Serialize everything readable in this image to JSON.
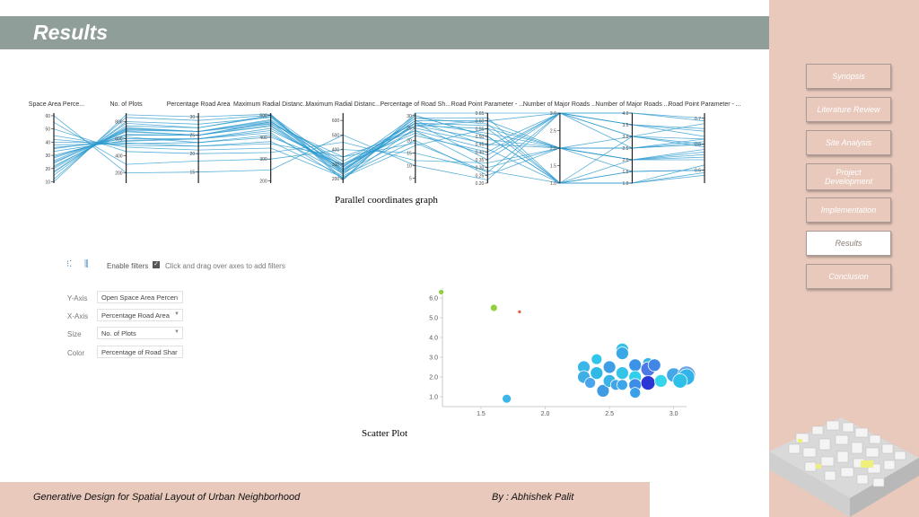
{
  "header": {
    "title": "Results"
  },
  "nav": {
    "items": [
      {
        "label": "Synopsis"
      },
      {
        "label": "Literature Review"
      },
      {
        "label": "Site Analysis"
      },
      {
        "label": "Project Development"
      },
      {
        "label": "Implementation"
      },
      {
        "label": "Results",
        "active": true
      },
      {
        "label": "Conclusion"
      }
    ]
  },
  "captions": {
    "parallel": "Parallel coordinates graph",
    "scatter": "Scatter Plot"
  },
  "footer": {
    "left": "Generative Design for Spatial Layout of Urban Neighborhood",
    "right": "By : Abhishek Palit"
  },
  "toolbar": {
    "enable_filters": "Enable filters",
    "checkbox_mark": "✓",
    "hint": "Click and drag over axes to add filters"
  },
  "controls": [
    {
      "label": "Y-Axis",
      "value": "Open Space Area Percen",
      "dropdown": false
    },
    {
      "label": "X-Axis",
      "value": "Percentage Road Area",
      "dropdown": true
    },
    {
      "label": "Size",
      "value": "No. of Plots",
      "dropdown": true
    },
    {
      "label": "Color",
      "value": "Percentage of Road Shar",
      "dropdown": false
    }
  ],
  "colors": {
    "line": "#2e9bd0",
    "accent_bar": "#8f9e99",
    "panel": "#e8c9bc"
  },
  "chart_data": [
    {
      "type": "parallel-coordinates",
      "axes": [
        {
          "label": "n Space Area Perce...",
          "ticks": [
            "60",
            "50",
            "40",
            "30",
            "20",
            "10"
          ],
          "range": [
            9,
            62
          ]
        },
        {
          "label": "No. of Plots",
          "ticks": [
            "800",
            "600",
            "400",
            "200"
          ],
          "range": [
            80,
            900
          ]
        },
        {
          "label": "Percentage Road Area",
          "ticks": [
            "30",
            "25",
            "20",
            "15"
          ],
          "range": [
            12,
            31
          ]
        },
        {
          "label": "Maximum Radial Distanc...",
          "ticks": [
            "500",
            "400",
            "300",
            "200"
          ],
          "range": [
            190,
            510
          ]
        },
        {
          "label": "Maximum Radial Distanc...",
          "ticks": [
            "600",
            "500",
            "400",
            "300",
            "200"
          ],
          "range": [
            170,
            650
          ]
        },
        {
          "label": "Percentage of Road Sh...",
          "ticks": [
            "30",
            "25",
            "20",
            "15",
            "10",
            "5"
          ],
          "range": [
            3,
            31
          ]
        },
        {
          "label": "Road Point Parameter - ...",
          "ticks": [
            "0.65",
            "0.60",
            "0.55",
            "0.50",
            "0.45",
            "0.40",
            "0.35",
            "0.30",
            "0.25",
            "0.20"
          ],
          "range": [
            0.2,
            0.65
          ]
        },
        {
          "label": "Number of Major Roads ...",
          "ticks": [
            "3.0",
            "2.5",
            "2.0",
            "1.5",
            "1.0"
          ],
          "range": [
            1,
            3
          ]
        },
        {
          "label": "Number of Major Roads ...",
          "ticks": [
            "4.0",
            "3.5",
            "3.0",
            "2.5",
            "2.0",
            "1.5",
            "1.0"
          ],
          "range": [
            1,
            4
          ]
        },
        {
          "label": "Road Point Parameter - ...",
          "ticks": [
            "0.7",
            "0.6",
            "0.5"
          ],
          "range": [
            0.45,
            0.72
          ]
        }
      ],
      "rows": [
        [
          22,
          700,
          26,
          480,
          300,
          26,
          0.55,
          2,
          2.5,
          0.6
        ],
        [
          28,
          650,
          25,
          450,
          250,
          28,
          0.6,
          3,
          3,
          0.62
        ],
        [
          35,
          600,
          24,
          420,
          200,
          25,
          0.45,
          2,
          2,
          0.55
        ],
        [
          18,
          750,
          27,
          500,
          280,
          30,
          0.5,
          1,
          1.5,
          0.5
        ],
        [
          25,
          680,
          25,
          470,
          320,
          27,
          0.35,
          3,
          3.5,
          0.65
        ],
        [
          40,
          550,
          22,
          380,
          220,
          20,
          0.25,
          2,
          2,
          0.58
        ],
        [
          15,
          800,
          28,
          490,
          260,
          29,
          0.62,
          1,
          1,
          0.52
        ],
        [
          30,
          620,
          23,
          410,
          240,
          22,
          0.4,
          3,
          2.5,
          0.6
        ],
        [
          20,
          720,
          26,
          460,
          350,
          24,
          0.3,
          2,
          3,
          0.68
        ],
        [
          45,
          500,
          21,
          350,
          210,
          18,
          0.55,
          1,
          1.5,
          0.5
        ],
        [
          12,
          850,
          29,
          500,
          190,
          31,
          0.65,
          3,
          4,
          0.7
        ],
        [
          33,
          580,
          24,
          440,
          270,
          26,
          0.48,
          2,
          2,
          0.56
        ],
        [
          55,
          300,
          18,
          300,
          400,
          15,
          0.28,
          1,
          1,
          0.48
        ],
        [
          60,
          200,
          15,
          250,
          500,
          10,
          0.22,
          3,
          3.5,
          0.66
        ],
        [
          26,
          690,
          25,
          465,
          230,
          27,
          0.52,
          2,
          2.5,
          0.62
        ],
        [
          38,
          540,
          23,
          400,
          300,
          23,
          0.38,
          3,
          3,
          0.59
        ],
        [
          17,
          780,
          27,
          495,
          250,
          29,
          0.58,
          1,
          2,
          0.54
        ],
        [
          50,
          450,
          20,
          330,
          450,
          12,
          0.33,
          2,
          1.5,
          0.5
        ],
        [
          24,
          710,
          26,
          470,
          280,
          28,
          0.44,
          3,
          3.5,
          0.63
        ],
        [
          29,
          640,
          25,
          455,
          260,
          26,
          0.6,
          2,
          2.5,
          0.61
        ],
        [
          10,
          880,
          30,
          505,
          200,
          30,
          0.5,
          1,
          1,
          0.49
        ],
        [
          42,
          520,
          22,
          370,
          350,
          19,
          0.27,
          3,
          4,
          0.69
        ],
        [
          21,
          730,
          26,
          475,
          240,
          27,
          0.57,
          2,
          2,
          0.57
        ],
        [
          36,
          570,
          24,
          430,
          290,
          24,
          0.42,
          1,
          3,
          0.6
        ]
      ]
    },
    {
      "type": "scatter",
      "xlabel": "",
      "ylabel": "",
      "xlim": [
        1.2,
        3.1
      ],
      "ylim": [
        0.5,
        6.5
      ],
      "xticks": [
        "1.5",
        "2.0",
        "2.5",
        "3.0"
      ],
      "yticks": [
        "6.0",
        "5.0",
        "4.0",
        "3.0",
        "2.0",
        "1.0"
      ],
      "points": [
        {
          "x": 1.19,
          "y": 6.3,
          "r": 3,
          "color": "#8ed13c"
        },
        {
          "x": 1.6,
          "y": 5.5,
          "r": 4,
          "color": "#8ed13c"
        },
        {
          "x": 1.8,
          "y": 5.3,
          "r": 2,
          "color": "#e05a3c"
        },
        {
          "x": 1.7,
          "y": 0.9,
          "r": 5,
          "color": "#3bb6e8"
        },
        {
          "x": 2.3,
          "y": 2.5,
          "r": 7,
          "color": "#3bb6e8"
        },
        {
          "x": 2.3,
          "y": 2.0,
          "r": 7,
          "color": "#3eaee6"
        },
        {
          "x": 2.35,
          "y": 1.7,
          "r": 6,
          "color": "#4aa6ec"
        },
        {
          "x": 2.4,
          "y": 2.9,
          "r": 6,
          "color": "#33c6ec"
        },
        {
          "x": 2.4,
          "y": 2.2,
          "r": 7,
          "color": "#2fb9e6"
        },
        {
          "x": 2.45,
          "y": 1.3,
          "r": 7,
          "color": "#3f9be4"
        },
        {
          "x": 2.5,
          "y": 2.5,
          "r": 7,
          "color": "#3e9fe6"
        },
        {
          "x": 2.5,
          "y": 1.8,
          "r": 7,
          "color": "#37b4e8"
        },
        {
          "x": 2.55,
          "y": 1.6,
          "r": 6,
          "color": "#40a6e8"
        },
        {
          "x": 2.6,
          "y": 3.4,
          "r": 7,
          "color": "#35c2ea"
        },
        {
          "x": 2.6,
          "y": 3.2,
          "r": 7,
          "color": "#3aa8e6"
        },
        {
          "x": 2.6,
          "y": 2.2,
          "r": 7,
          "color": "#34c4ea"
        },
        {
          "x": 2.6,
          "y": 1.6,
          "r": 6,
          "color": "#3ba7ea"
        },
        {
          "x": 2.7,
          "y": 2.6,
          "r": 7,
          "color": "#3b93e8"
        },
        {
          "x": 2.7,
          "y": 2.0,
          "r": 7,
          "color": "#2fd0ec"
        },
        {
          "x": 2.7,
          "y": 1.6,
          "r": 7,
          "color": "#3b8ee6"
        },
        {
          "x": 2.7,
          "y": 1.2,
          "r": 6,
          "color": "#3aa0ea"
        },
        {
          "x": 2.8,
          "y": 2.7,
          "r": 6,
          "color": "#2fb6e6"
        },
        {
          "x": 2.8,
          "y": 2.4,
          "r": 8,
          "color": "#4c79e6"
        },
        {
          "x": 2.8,
          "y": 1.7,
          "r": 8,
          "color": "#2b36d6"
        },
        {
          "x": 2.85,
          "y": 2.6,
          "r": 7,
          "color": "#3f86e6"
        },
        {
          "x": 2.9,
          "y": 1.8,
          "r": 7,
          "color": "#35d6ec"
        },
        {
          "x": 3.0,
          "y": 2.1,
          "r": 8,
          "color": "#45a7e8"
        },
        {
          "x": 3.1,
          "y": 2.1,
          "r": 10,
          "color": "#6aa2e6"
        },
        {
          "x": 3.1,
          "y": 2.0,
          "r": 9,
          "color": "#30b4ea"
        },
        {
          "x": 3.05,
          "y": 1.8,
          "r": 8,
          "color": "#2fc0ea"
        }
      ]
    }
  ]
}
